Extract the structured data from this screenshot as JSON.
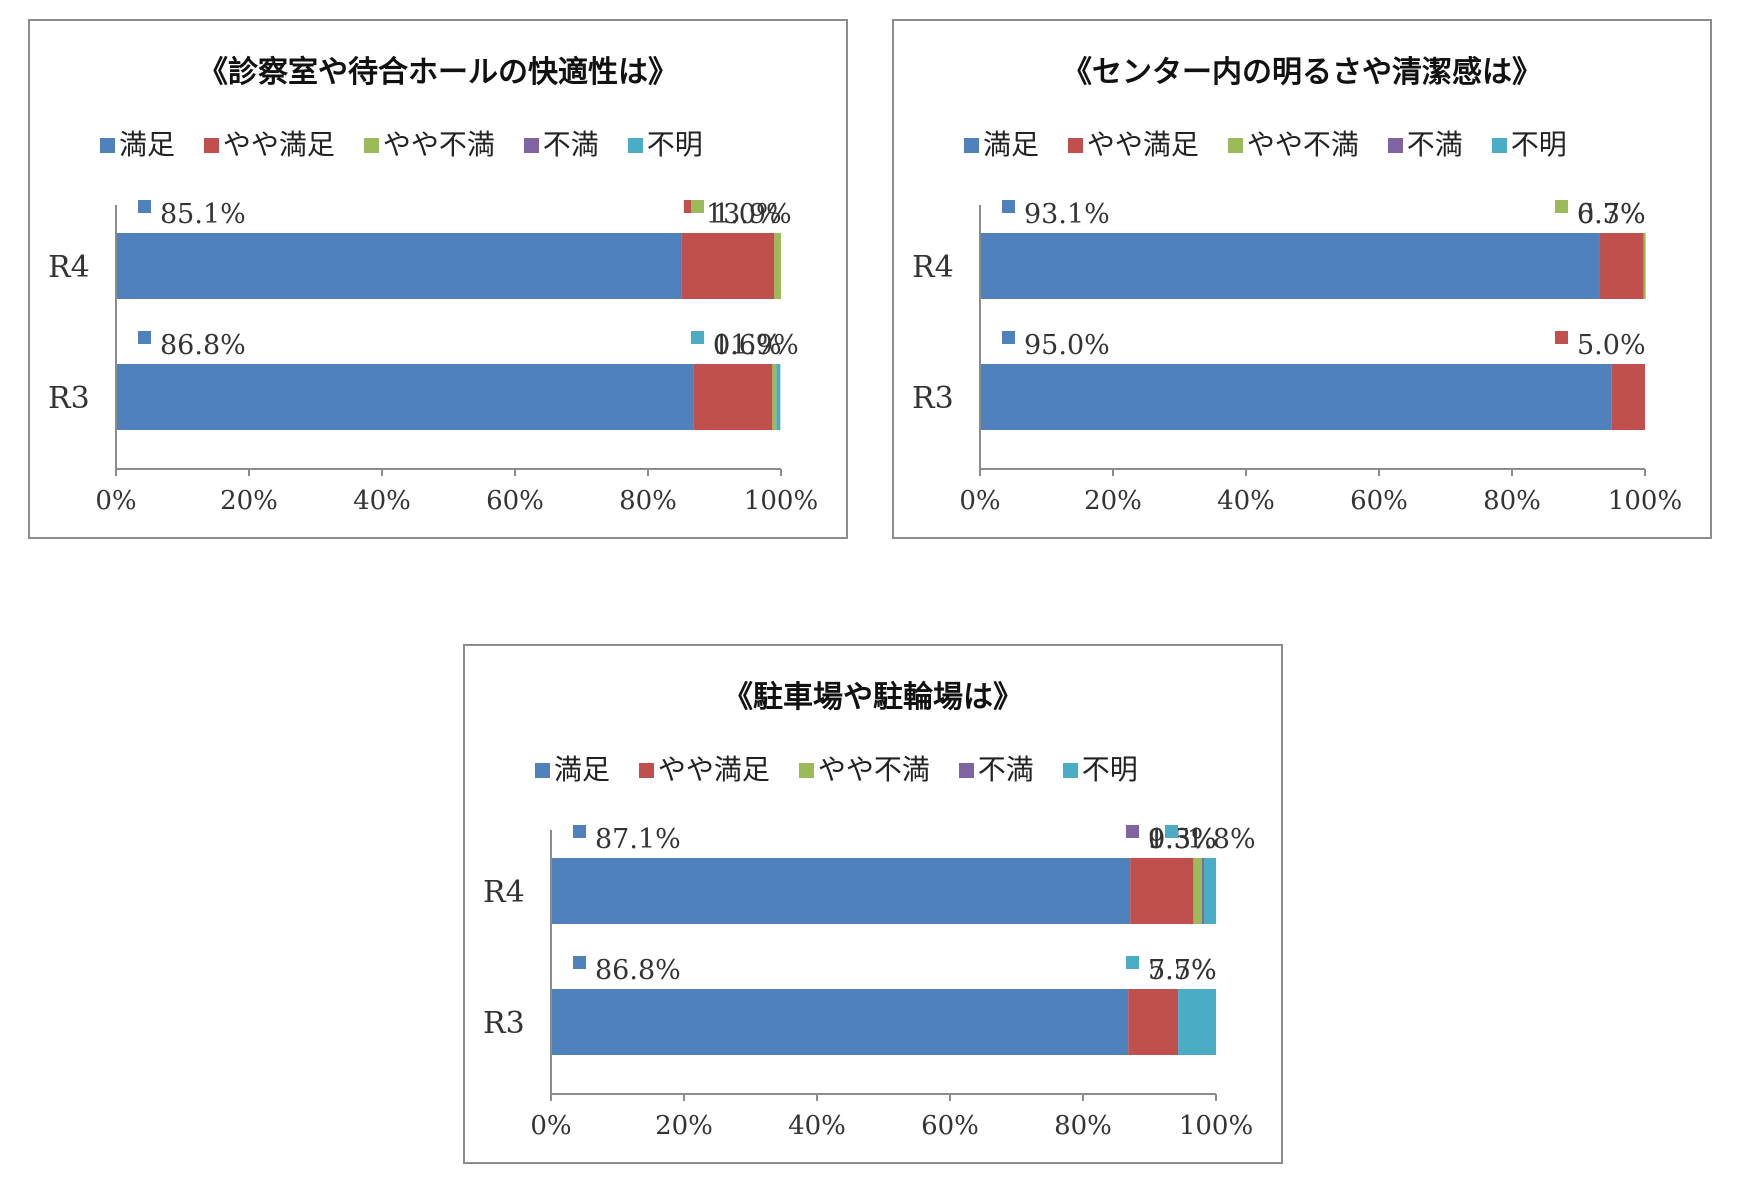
{
  "chart_data": [
    {
      "type": "bar",
      "orientation": "horizontal",
      "stacked": true,
      "title": "《診察室や待合ホールの快適性は》",
      "categories": [
        "R4",
        "R3"
      ],
      "legend": [
        "満足",
        "やや満足",
        "やや不満",
        "不満",
        "不明"
      ],
      "legend_position": "top",
      "colors": [
        "#4F81BD",
        "#C0504D",
        "#9BBB59",
        "#8064A2",
        "#4BACC6"
      ],
      "series": [
        {
          "name": "満足",
          "values": [
            85.1,
            86.8
          ]
        },
        {
          "name": "やや満足",
          "values": [
            13.9,
            11.9
          ]
        },
        {
          "name": "やや不満",
          "values": [
            1.0,
            0.6
          ]
        },
        {
          "name": "不満",
          "values": [
            0,
            0
          ]
        },
        {
          "name": "不明",
          "values": [
            0,
            0.6
          ]
        }
      ],
      "value_labels": [
        [
          "85.1%",
          "13.9%",
          "1.0%",
          "",
          ""
        ],
        [
          "86.8%",
          "11.9%",
          "0.6%",
          "",
          "0.6%"
        ]
      ],
      "xticks": [
        "0%",
        "20%",
        "40%",
        "60%",
        "80%",
        "100%"
      ],
      "xlim": [
        0,
        100
      ],
      "grid": false
    },
    {
      "type": "bar",
      "orientation": "horizontal",
      "stacked": true,
      "title": "《センター内の明るさや清潔感は》",
      "categories": [
        "R4",
        "R3"
      ],
      "legend": [
        "満足",
        "やや満足",
        "やや不満",
        "不満",
        "不明"
      ],
      "legend_position": "top",
      "colors": [
        "#4F81BD",
        "#C0504D",
        "#9BBB59",
        "#8064A2",
        "#4BACC6"
      ],
      "series": [
        {
          "name": "満足",
          "values": [
            93.1,
            95.0
          ]
        },
        {
          "name": "やや満足",
          "values": [
            6.7,
            5.0
          ]
        },
        {
          "name": "やや不満",
          "values": [
            0.3,
            0
          ]
        },
        {
          "name": "不満",
          "values": [
            0,
            0
          ]
        },
        {
          "name": "不明",
          "values": [
            0,
            0
          ]
        }
      ],
      "value_labels": [
        [
          "93.1%",
          "6.7%",
          "0.3%",
          "",
          ""
        ],
        [
          "95.0%",
          "5.0%",
          "",
          "",
          ""
        ]
      ],
      "xticks": [
        "0%",
        "20%",
        "40%",
        "60%",
        "80%",
        "100%"
      ],
      "xlim": [
        0,
        100
      ],
      "grid": false
    },
    {
      "type": "bar",
      "orientation": "horizontal",
      "stacked": true,
      "title": "《駐車場や駐輪場は》",
      "categories": [
        "R4",
        "R3"
      ],
      "legend": [
        "満足",
        "やや満足",
        "やや不満",
        "不満",
        "不明"
      ],
      "legend_position": "top",
      "colors": [
        "#4F81BD",
        "#C0504D",
        "#9BBB59",
        "#8064A2",
        "#4BACC6"
      ],
      "series": [
        {
          "name": "満足",
          "values": [
            87.1,
            86.8
          ]
        },
        {
          "name": "やや満足",
          "values": [
            9.5,
            7.5
          ]
        },
        {
          "name": "やや不満",
          "values": [
            1.3,
            0
          ]
        },
        {
          "name": "不満",
          "values": [
            0.3,
            0
          ]
        },
        {
          "name": "不明",
          "values": [
            1.8,
            5.7
          ]
        }
      ],
      "value_labels": [
        [
          "87.1%",
          "9.5%",
          "1.3%",
          "0.3%",
          "1.8%"
        ],
        [
          "86.8%",
          "7.5%",
          "",
          "",
          "5.7%"
        ]
      ],
      "xticks": [
        "0%",
        "20%",
        "40%",
        "60%",
        "80%",
        "100%"
      ],
      "xlim": [
        0,
        100
      ],
      "grid": false
    }
  ]
}
